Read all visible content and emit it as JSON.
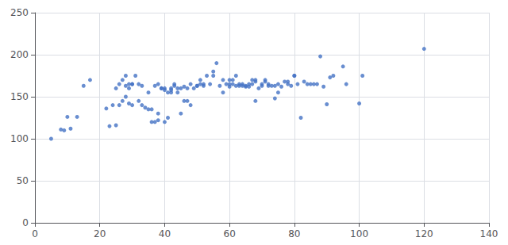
{
  "chart_data": {
    "type": "scatter",
    "x": [
      5,
      8,
      9,
      10,
      11,
      13,
      15,
      17,
      22,
      23,
      24,
      25,
      25,
      26,
      26,
      27,
      27,
      28,
      28,
      28,
      29,
      29,
      29,
      30,
      30,
      30,
      31,
      32,
      32,
      33,
      33,
      34,
      35,
      35,
      36,
      36,
      37,
      37,
      38,
      38,
      38,
      39,
      39,
      40,
      40,
      40,
      41,
      41,
      42,
      42,
      42,
      43,
      43,
      44,
      44,
      45,
      45,
      46,
      46,
      47,
      47,
      48,
      48,
      49,
      50,
      50,
      51,
      51,
      52,
      52,
      53,
      54,
      55,
      55,
      56,
      57,
      58,
      58,
      59,
      60,
      60,
      60,
      61,
      61,
      62,
      62,
      63,
      63,
      64,
      64,
      65,
      65,
      66,
      66,
      67,
      67,
      68,
      68,
      68,
      69,
      70,
      70,
      71,
      71,
      72,
      72,
      73,
      74,
      74,
      75,
      75,
      76,
      77,
      78,
      78,
      79,
      80,
      80,
      81,
      82,
      83,
      84,
      85,
      86,
      87,
      88,
      89,
      90,
      91,
      92,
      95,
      96,
      100,
      101,
      120
    ],
    "values": [
      100,
      111,
      110,
      126,
      112,
      126,
      163,
      170,
      136,
      115,
      140,
      116,
      160,
      140,
      165,
      170,
      145,
      150,
      175,
      163,
      142,
      160,
      165,
      165,
      140,
      165,
      175,
      145,
      165,
      163,
      140,
      137,
      135,
      155,
      120,
      135,
      120,
      163,
      122,
      130,
      165,
      160,
      160,
      120,
      158,
      160,
      125,
      155,
      160,
      155,
      158,
      163,
      165,
      155,
      160,
      130,
      160,
      145,
      162,
      145,
      160,
      140,
      165,
      160,
      163,
      163,
      170,
      165,
      163,
      165,
      175,
      165,
      180,
      175,
      190,
      163,
      155,
      170,
      165,
      170,
      162,
      165,
      165,
      170,
      163,
      175,
      165,
      163,
      163,
      165,
      162,
      163,
      162,
      165,
      165,
      170,
      145,
      168,
      170,
      160,
      163,
      165,
      168,
      170,
      165,
      163,
      163,
      148,
      163,
      155,
      165,
      162,
      168,
      165,
      168,
      163,
      175,
      175,
      165,
      125,
      168,
      165,
      165,
      165,
      165,
      198,
      162,
      141,
      173,
      175,
      186,
      165,
      142,
      175,
      207
    ],
    "color": "#4472C4",
    "xlim": [
      0,
      140
    ],
    "xticks": [
      0,
      20,
      40,
      60,
      80,
      100,
      120,
      140
    ],
    "ylim": [
      0,
      250
    ],
    "yticks": [
      0,
      50,
      100,
      150,
      200,
      250
    ],
    "grid": true
  }
}
